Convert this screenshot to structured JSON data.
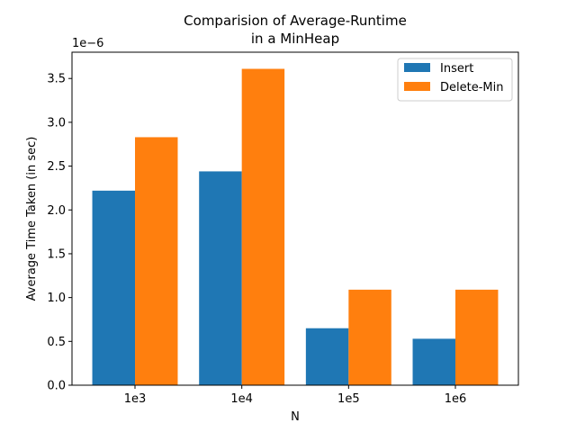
{
  "chart_data": {
    "type": "bar",
    "title_lines": [
      "Comparision of Average-Runtime",
      "in a MinHeap"
    ],
    "xlabel": "N",
    "ylabel": "Average Time Taken (in sec)",
    "y_offset_label": "1e−6",
    "categories": [
      "1e3",
      "1e4",
      "1e5",
      "1e6"
    ],
    "series": [
      {
        "name": "Insert",
        "color": "#1f77b4",
        "values": [
          2.22,
          2.44,
          0.65,
          0.53
        ]
      },
      {
        "name": "Delete-Min",
        "color": "#ff7f0e",
        "values": [
          2.83,
          3.61,
          1.09,
          1.09
        ]
      }
    ],
    "ylim": [
      0,
      3.8
    ],
    "yticks": [
      0.0,
      0.5,
      1.0,
      1.5,
      2.0,
      2.5,
      3.0,
      3.5
    ],
    "ytick_labels": [
      "0.0",
      "0.5",
      "1.0",
      "1.5",
      "2.0",
      "2.5",
      "3.0",
      "3.5"
    ],
    "value_scale": "1e-6",
    "grid": false,
    "legend_position": "top-right"
  }
}
